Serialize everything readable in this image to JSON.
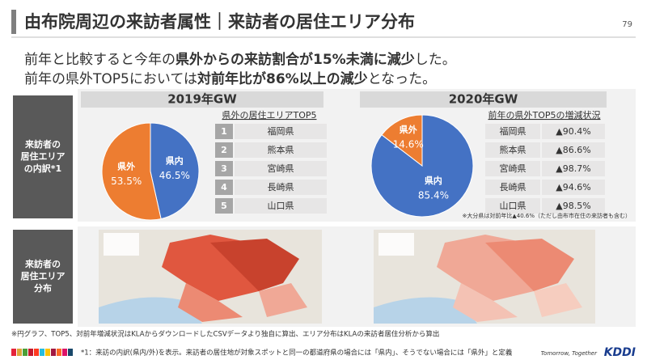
{
  "header": {
    "title": "由布院周辺の来訪者属性｜来訪者の居住エリア分布",
    "page": "79"
  },
  "headline": {
    "line1": [
      "前年と比較すると今年の",
      "県外からの来訪割合が15%未満に減少",
      "した。"
    ],
    "line2": [
      "前年の県外TOP5においては",
      "対前年比が86%以上の減少",
      "となった。"
    ]
  },
  "row_labels": [
    [
      "来訪者の",
      "居住エリア",
      "の内訳*1"
    ],
    [
      "来訪者の",
      "居住エリア",
      "分布"
    ]
  ],
  "chart_data": [
    {
      "type": "pie",
      "title": "2019年GW",
      "categories": [
        "県内",
        "県外"
      ],
      "values": [
        46.5,
        53.5
      ],
      "value_labels": [
        "46.5%",
        "53.5%"
      ],
      "colors": [
        "#4472c4",
        "#ed7d31"
      ]
    },
    {
      "type": "pie",
      "title": "2020年GW",
      "categories": [
        "県内",
        "県外"
      ],
      "values": [
        85.4,
        14.6
      ],
      "value_labels": [
        "85.4%",
        "14.6%"
      ],
      "colors": [
        "#4472c4",
        "#ed7d31"
      ]
    }
  ],
  "tables": [
    {
      "title": "県外の居住エリアTOP5",
      "rows": [
        [
          "1",
          "福岡県"
        ],
        [
          "2",
          "熊本県"
        ],
        [
          "3",
          "宮崎県"
        ],
        [
          "4",
          "長崎県"
        ],
        [
          "5",
          "山口県"
        ]
      ]
    },
    {
      "title": "前年の県外TOP5の増減状況",
      "rows": [
        [
          "福岡県",
          "▲90.4%"
        ],
        [
          "熊本県",
          "▲86.6%"
        ],
        [
          "宮崎県",
          "▲98.7%"
        ],
        [
          "長崎県",
          "▲94.6%"
        ],
        [
          "山口県",
          "▲98.5%"
        ]
      ]
    }
  ],
  "note_oita": "※大分県は対前年比▲40.6%（ただし由布市在住の来訪者も含む）",
  "source_note": "※円グラフ、TOP5、対前年増減状況はKLAからダウンロードしたCSVデータより独自に算出、エリア分布はKLAの来訪者居住分析から算出",
  "footnote": "*1：来訪の内訳(県内/外)を表示。来訪者の居住地が対象スポットと同一の都道府県の場合には「県内」、そうでない場合には「県外」と定義",
  "logo": {
    "tagline": "Tomorrow, Together",
    "brand": "KDDI"
  }
}
